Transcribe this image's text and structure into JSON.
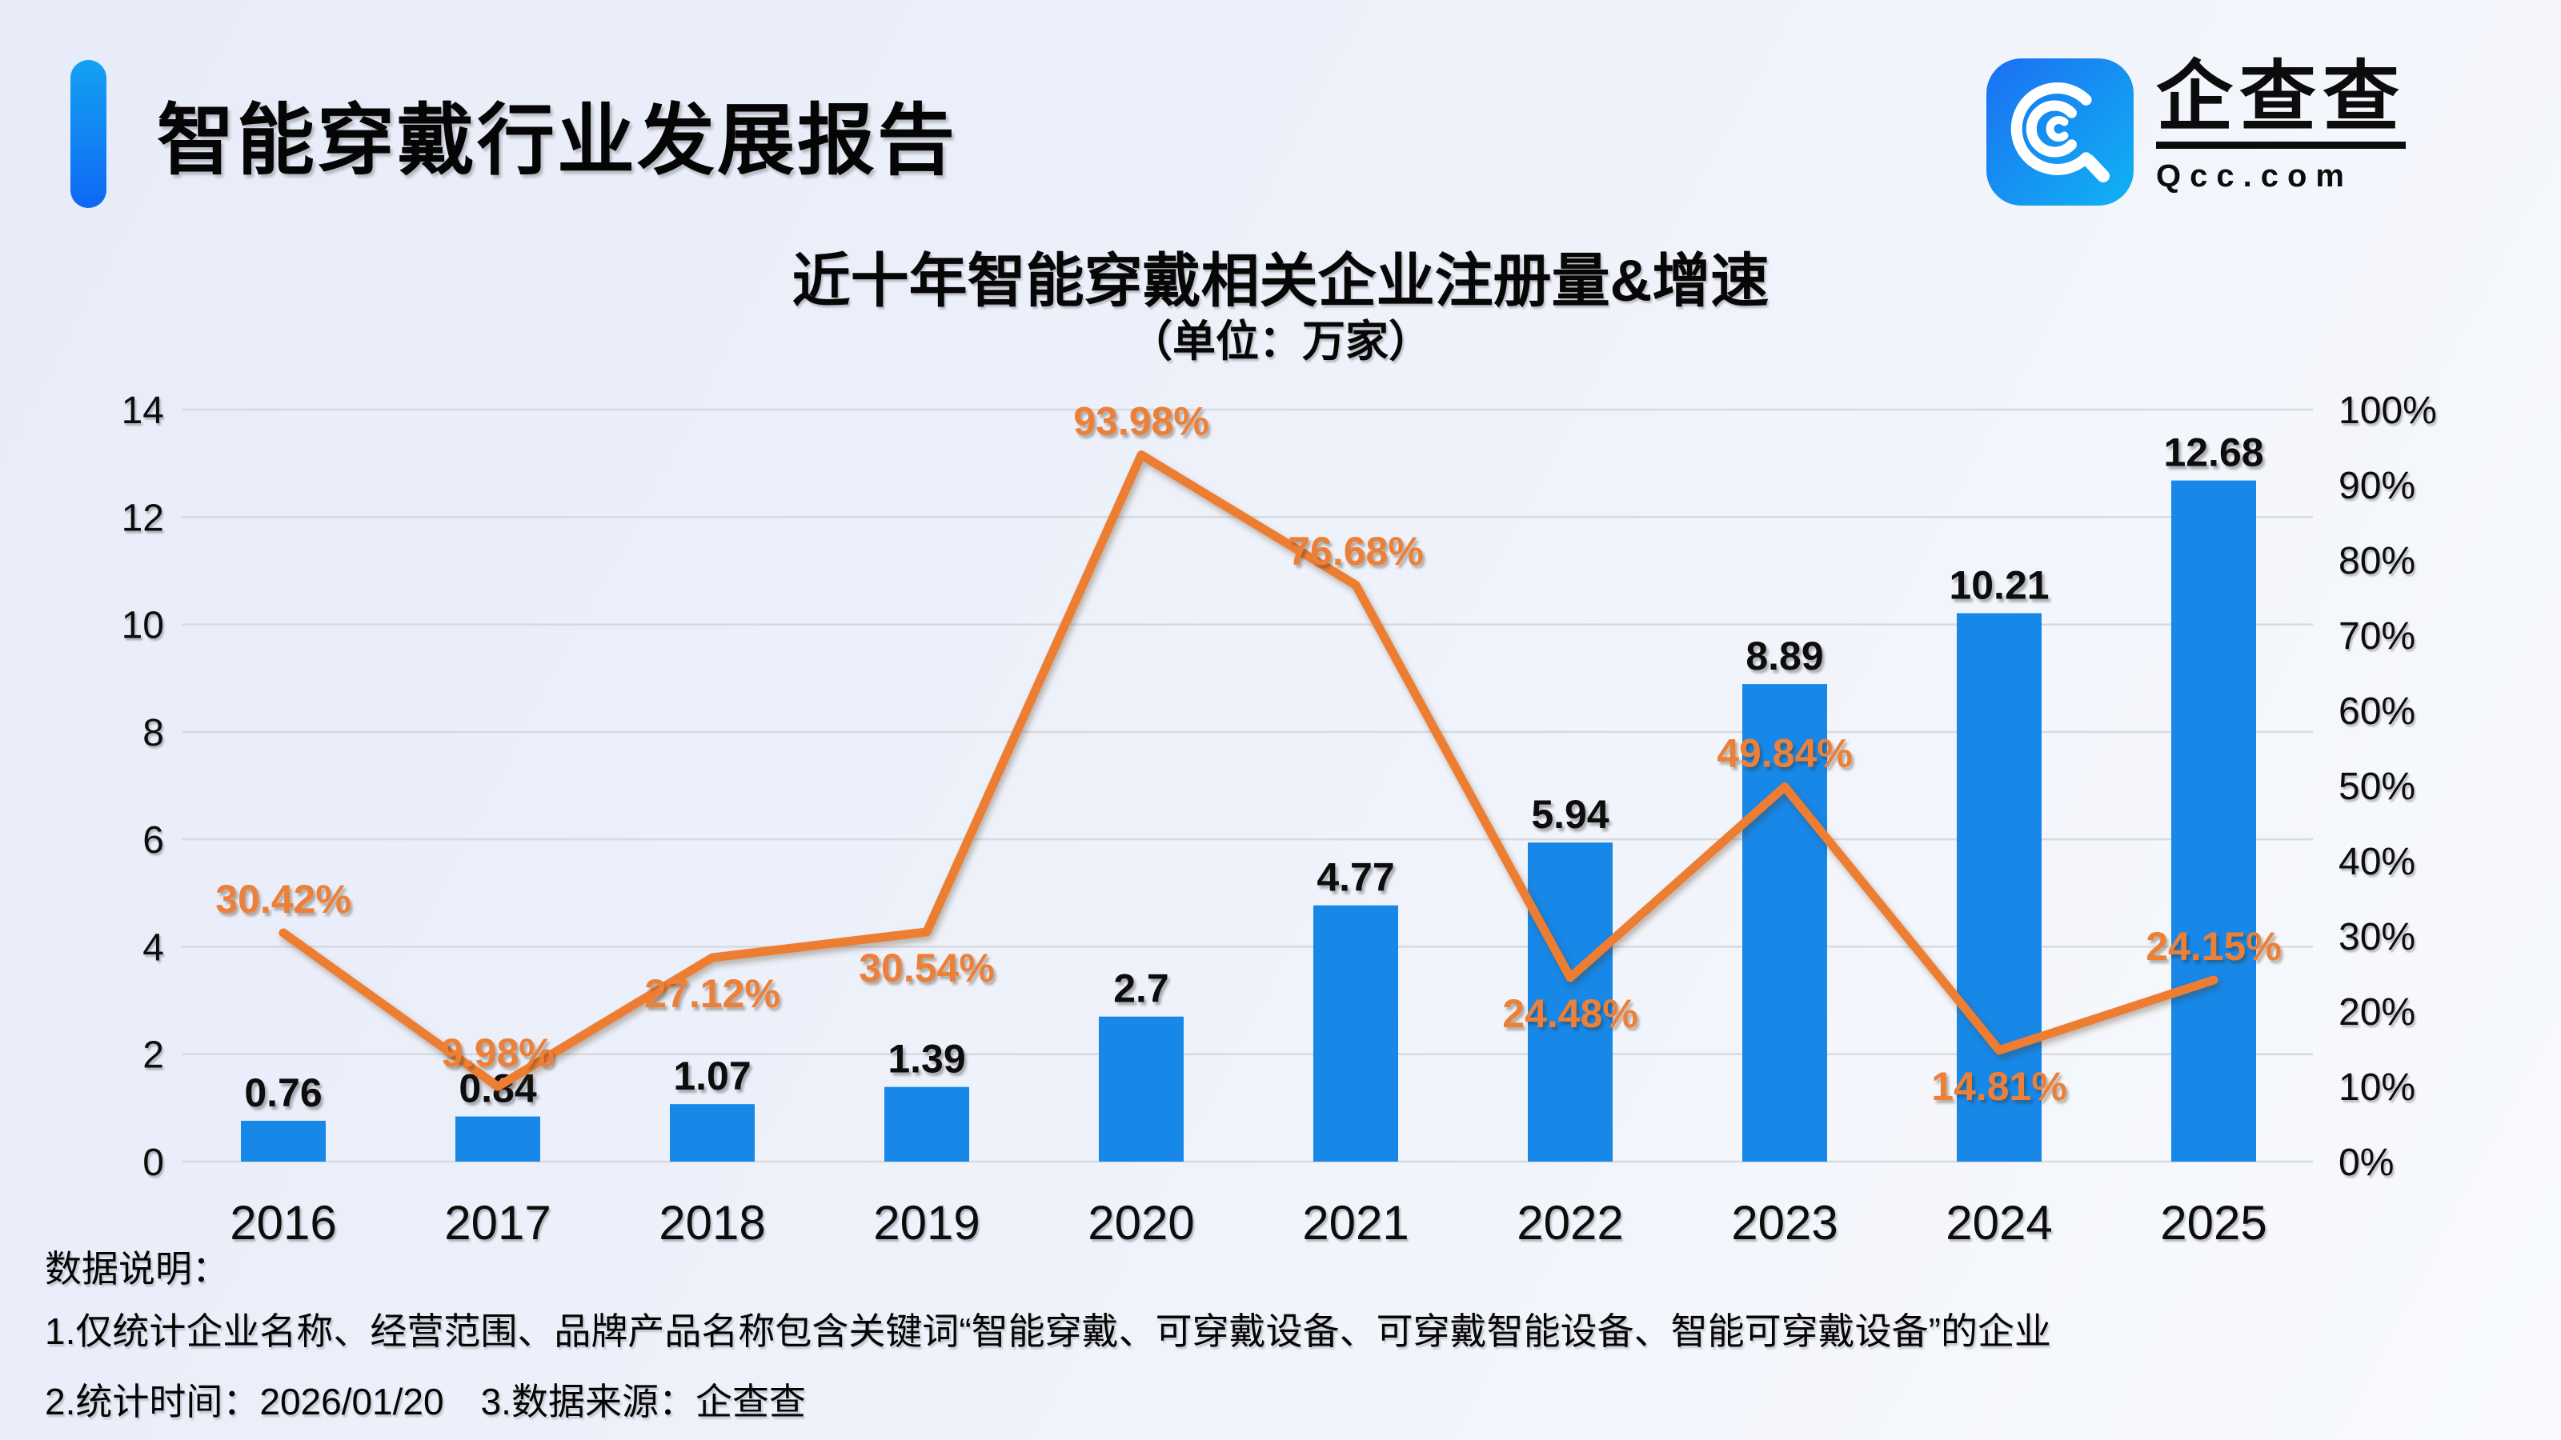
{
  "header": {
    "title": "智能穿戴行业发展报告"
  },
  "logo": {
    "name": "企查查",
    "domain": "Qcc.com",
    "icon": "qcc-magnifier-icon",
    "icon_colors": [
      "#1b6ff2",
      "#10b3f3"
    ]
  },
  "chart_data": {
    "type": "bar",
    "title": "近十年智能穿戴相关企业注册量&增速",
    "subtitle": "（单位：万家）",
    "categories": [
      "2016",
      "2017",
      "2018",
      "2019",
      "2020",
      "2021",
      "2022",
      "2023",
      "2024",
      "2025"
    ],
    "series": [
      {
        "name": "注册量",
        "type": "bar",
        "values": [
          0.76,
          0.84,
          1.07,
          1.39,
          2.7,
          4.77,
          5.94,
          8.89,
          10.21,
          12.68
        ],
        "labels": [
          "0.76",
          "0.84",
          "1.07",
          "1.39",
          "2.7",
          "4.77",
          "5.94",
          "8.89",
          "10.21",
          "12.68"
        ],
        "color": "#1787e8",
        "axis": "left"
      },
      {
        "name": "增速",
        "type": "line",
        "values": [
          30.42,
          9.98,
          27.12,
          30.54,
          93.98,
          76.68,
          24.48,
          49.84,
          14.81,
          24.15
        ],
        "labels": [
          "30.42%",
          "9.98%",
          "27.12%",
          "30.54%",
          "93.98%",
          "76.68%",
          "24.48%",
          "49.84%",
          "14.81%",
          "24.15%"
        ],
        "label_positions": [
          "above",
          "above",
          "below",
          "below",
          "above",
          "above",
          "below",
          "above",
          "below",
          "above"
        ],
        "color": "#ed7d31",
        "label_color": "#ed8038",
        "axis": "right"
      }
    ],
    "left_axis": {
      "min": 0,
      "max": 14,
      "step": 2,
      "ticks": [
        "0",
        "2",
        "4",
        "6",
        "8",
        "10",
        "12",
        "14"
      ]
    },
    "right_axis": {
      "min": 0,
      "max": 100,
      "step": 10,
      "ticks": [
        "0%",
        "10%",
        "20%",
        "30%",
        "40%",
        "50%",
        "60%",
        "70%",
        "80%",
        "90%",
        "100%"
      ]
    },
    "grid": "horizontal",
    "gridline_color": "#d7dade",
    "legend": "none"
  },
  "footer": {
    "heading": "数据说明：",
    "note1": "1.仅统计企业名称、经营范围、品牌产品名称包含关键词“智能穿戴、可穿戴设备、可穿戴智能设备、智能可穿戴设备”的企业",
    "note2": "2.统计时间：2026/01/20　3.数据来源：企查查"
  }
}
